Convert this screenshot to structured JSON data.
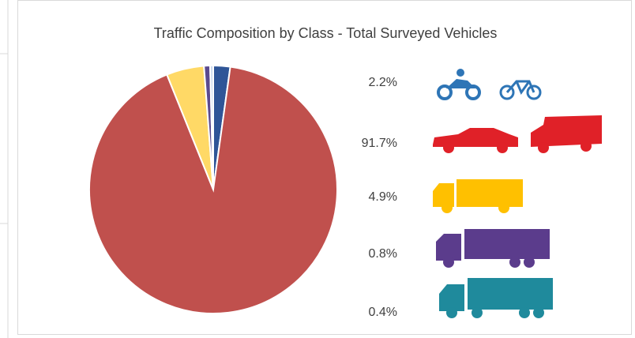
{
  "chart_data": {
    "type": "pie",
    "title": "Traffic Composition by Class - Total Surveyed Vehicles",
    "categories": [
      null,
      null,
      null,
      null,
      null
    ],
    "values": [
      2.2,
      91.7,
      4.9,
      0.8,
      0.4
    ],
    "value_labels": [
      "2.2%",
      "91.7%",
      "4.9%",
      "0.8%",
      "0.4%"
    ],
    "colors": [
      "#2f5597",
      "#c0504d",
      "#ffd966",
      "#5b4a8f",
      "#c9d7ec"
    ]
  }
}
